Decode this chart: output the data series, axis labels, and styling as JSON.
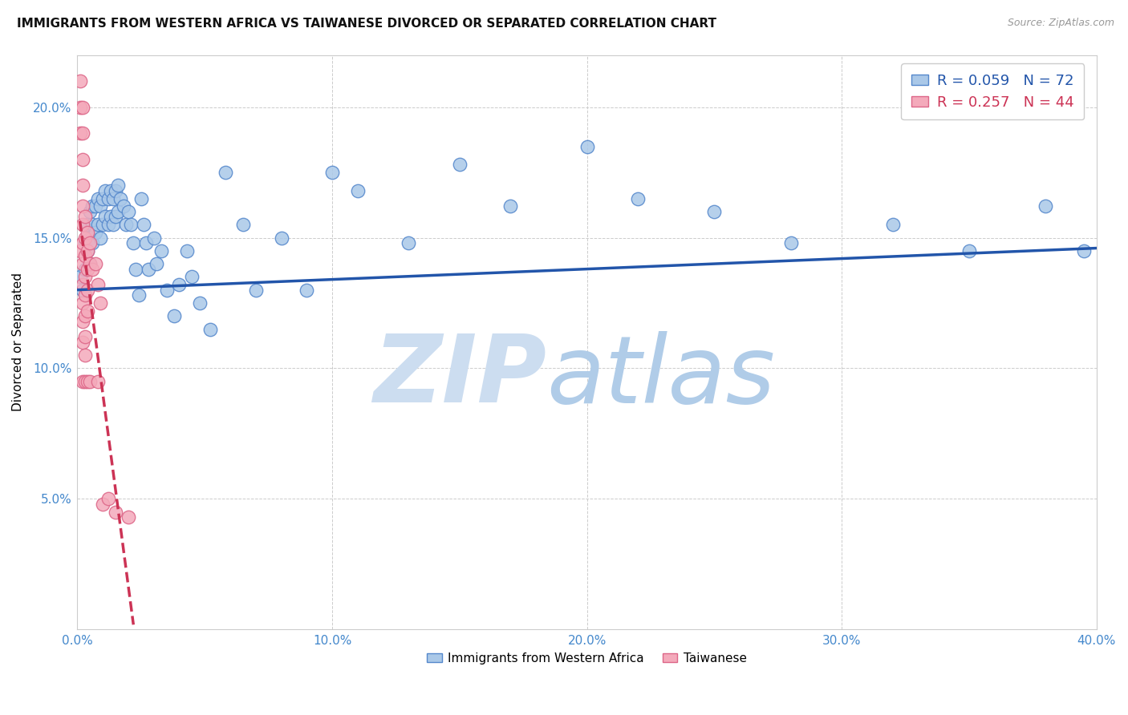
{
  "title": "IMMIGRANTS FROM WESTERN AFRICA VS TAIWANESE DIVORCED OR SEPARATED CORRELATION CHART",
  "source": "Source: ZipAtlas.com",
  "ylabel": "Divorced or Separated",
  "xlim": [
    0.0,
    0.4
  ],
  "ylim": [
    0.0,
    0.22
  ],
  "xticks": [
    0.0,
    0.1,
    0.2,
    0.3,
    0.4
  ],
  "yticks": [
    0.05,
    0.1,
    0.15,
    0.2
  ],
  "xticklabels": [
    "0.0%",
    "10.0%",
    "20.0%",
    "30.0%",
    "40.0%"
  ],
  "yticklabels": [
    "5.0%",
    "10.0%",
    "15.0%",
    "20.0%"
  ],
  "blue_color": "#aac8e8",
  "blue_edge_color": "#5588cc",
  "pink_color": "#f4aabb",
  "pink_edge_color": "#dd6688",
  "blue_line_color": "#2255aa",
  "pink_line_color": "#cc3355",
  "watermark_color": "#dce8f5",
  "background_color": "#ffffff",
  "grid_color": "#cccccc",
  "blue_x": [
    0.001,
    0.002,
    0.003,
    0.003,
    0.004,
    0.004,
    0.005,
    0.005,
    0.005,
    0.006,
    0.006,
    0.006,
    0.007,
    0.007,
    0.008,
    0.008,
    0.009,
    0.009,
    0.01,
    0.01,
    0.011,
    0.011,
    0.012,
    0.012,
    0.013,
    0.013,
    0.014,
    0.014,
    0.015,
    0.015,
    0.016,
    0.016,
    0.017,
    0.018,
    0.019,
    0.02,
    0.021,
    0.022,
    0.023,
    0.024,
    0.025,
    0.026,
    0.027,
    0.028,
    0.03,
    0.031,
    0.033,
    0.035,
    0.038,
    0.04,
    0.043,
    0.045,
    0.048,
    0.052,
    0.058,
    0.065,
    0.07,
    0.08,
    0.09,
    0.1,
    0.11,
    0.13,
    0.15,
    0.17,
    0.2,
    0.22,
    0.25,
    0.28,
    0.32,
    0.35,
    0.38,
    0.395
  ],
  "blue_y": [
    0.135,
    0.13,
    0.148,
    0.138,
    0.155,
    0.145,
    0.16,
    0.15,
    0.14,
    0.162,
    0.155,
    0.148,
    0.162,
    0.152,
    0.165,
    0.155,
    0.162,
    0.15,
    0.165,
    0.155,
    0.168,
    0.158,
    0.165,
    0.155,
    0.168,
    0.158,
    0.165,
    0.155,
    0.168,
    0.158,
    0.17,
    0.16,
    0.165,
    0.162,
    0.155,
    0.16,
    0.155,
    0.148,
    0.138,
    0.128,
    0.165,
    0.155,
    0.148,
    0.138,
    0.15,
    0.14,
    0.145,
    0.13,
    0.12,
    0.132,
    0.145,
    0.135,
    0.125,
    0.115,
    0.175,
    0.155,
    0.13,
    0.15,
    0.13,
    0.175,
    0.168,
    0.148,
    0.178,
    0.162,
    0.185,
    0.165,
    0.16,
    0.148,
    0.155,
    0.145,
    0.162,
    0.145
  ],
  "pink_x": [
    0.001,
    0.001,
    0.001,
    0.001,
    0.002,
    0.002,
    0.002,
    0.002,
    0.002,
    0.002,
    0.002,
    0.002,
    0.002,
    0.002,
    0.002,
    0.002,
    0.002,
    0.003,
    0.003,
    0.003,
    0.003,
    0.003,
    0.003,
    0.003,
    0.003,
    0.003,
    0.004,
    0.004,
    0.004,
    0.004,
    0.004,
    0.004,
    0.005,
    0.005,
    0.005,
    0.006,
    0.007,
    0.008,
    0.008,
    0.009,
    0.01,
    0.012,
    0.015,
    0.02
  ],
  "pink_y": [
    0.21,
    0.2,
    0.19,
    0.145,
    0.2,
    0.19,
    0.18,
    0.17,
    0.162,
    0.155,
    0.148,
    0.14,
    0.132,
    0.125,
    0.118,
    0.11,
    0.095,
    0.158,
    0.15,
    0.143,
    0.135,
    0.128,
    0.12,
    0.112,
    0.105,
    0.095,
    0.152,
    0.145,
    0.138,
    0.13,
    0.122,
    0.095,
    0.148,
    0.14,
    0.095,
    0.138,
    0.14,
    0.132,
    0.095,
    0.125,
    0.048,
    0.05,
    0.045,
    0.043
  ],
  "pink_line_x_start": 0.001,
  "pink_line_x_end": 0.022,
  "blue_line_y_at_0": 0.13,
  "blue_line_y_at_40": 0.146
}
